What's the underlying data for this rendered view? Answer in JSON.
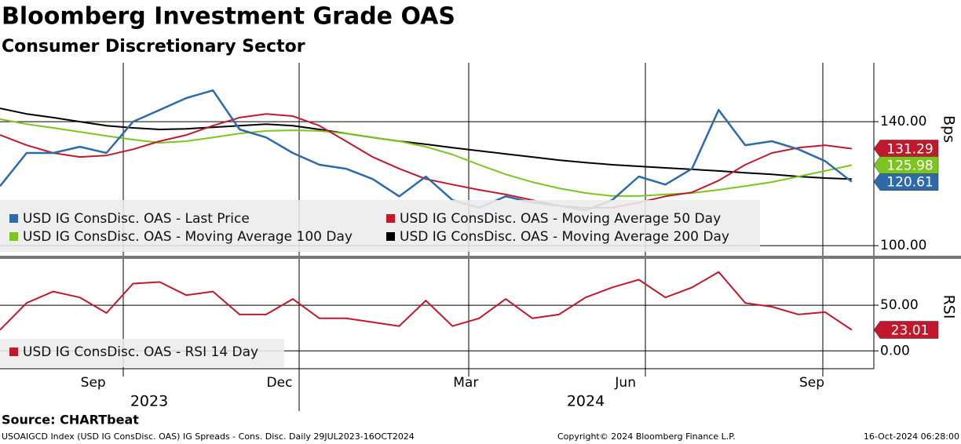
{
  "chart_data": {
    "type": "line",
    "title": "Bloomberg Investment Grade OAS",
    "subtitle": "Consumer Discretionary Sector",
    "categories": [
      null,
      null,
      null,
      "Sep",
      null,
      null,
      null,
      null,
      null,
      null,
      "Dec",
      null,
      null,
      null,
      null,
      null,
      null,
      "Mar",
      null,
      null,
      null,
      null,
      null,
      "Jun",
      null,
      null,
      null,
      null,
      null,
      null,
      "Sep",
      null,
      null
    ],
    "x_groups": [
      "2023",
      "2024"
    ],
    "panels": [
      {
        "ylabel": "Bps",
        "ylim": [
          97,
          159
        ],
        "yticks": [
          {
            "value": 100,
            "label": "100.00"
          },
          {
            "value": 140,
            "label": "140.00"
          }
        ],
        "series": [
          {
            "name": "USD IG ConsDisc. OAS - Last Price",
            "color": "#2f6aa8",
            "end_label": true,
            "values": [
              119.2,
              129.9,
              129.9,
              131.9,
              129.9,
              140,
              143.8,
              147.6,
              150.1,
              137.5,
              134.9,
              129.9,
              126.1,
              124.8,
              121.5,
              115.9,
              122.3,
              114.7,
              112.2,
              115.9,
              113.9,
              112.9,
              111.4,
              114.7,
              122.3,
              119.7,
              124.8,
              143.8,
              132.4,
              133.7,
              131.1,
              127.3,
              120.61
            ]
          },
          {
            "name": "USD IG ConsDisc. OAS - Moving Average 50 Day",
            "color": "#c0192e",
            "end_label": true,
            "values": [
              135.7,
              132.4,
              129.9,
              128.6,
              129.1,
              131.1,
              133.7,
              135.7,
              138.7,
              141.3,
              142.5,
              141.8,
              138.7,
              133.7,
              128.6,
              124.8,
              121.5,
              119.7,
              118,
              116.5,
              114.7,
              112.9,
              112.2,
              112.2,
              113.9,
              115.9,
              117.2,
              121,
              126.1,
              129.9,
              131.6,
              132.4,
              131.29
            ]
          },
          {
            "name": "USD IG ConsDisc. OAS - Moving Average 100 Day",
            "color": "#7cc520",
            "end_label": true,
            "values": [
              140.8,
              139.2,
              138,
              136.7,
              135.4,
              134.2,
              133.2,
              133.7,
              134.9,
              136.2,
              137,
              137.2,
              137,
              136.2,
              134.9,
              133.7,
              131.9,
              129.4,
              126.1,
              123,
              120.5,
              118.5,
              117,
              116,
              116,
              116.5,
              117,
              118,
              119.2,
              120.5,
              122.3,
              124.1,
              125.98
            ]
          },
          {
            "name": "USD IG ConsDisc. OAS - Moving Average 200 Day",
            "color": "#000000",
            "end_label": false,
            "values": [
              144.3,
              142.5,
              141.3,
              140,
              138.7,
              138,
              137.5,
              137.7,
              138.2,
              138.7,
              139.2,
              138.7,
              137.5,
              136.2,
              134.9,
              133.7,
              132.7,
              131.6,
              130.6,
              129.6,
              128.6,
              127.6,
              126.8,
              126.1,
              125.6,
              125.1,
              124.6,
              124.1,
              123.5,
              123,
              122.3,
              121.8,
              121.5
            ]
          }
        ]
      },
      {
        "ylabel": "RSI",
        "ylim": [
          -19.5,
          99
        ],
        "yticks": [
          {
            "value": 0,
            "label": "0.00"
          },
          {
            "value": 50,
            "label": "50.00"
          }
        ],
        "series": [
          {
            "name": "USD IG ConsDisc. OAS - RSI 14 Day",
            "color": "#c0192e",
            "end_label": true,
            "values": [
              23,
              52.5,
              65,
              58.5,
              41.5,
              73.7,
              75.4,
              61,
              65,
              39.8,
              39.8,
              56.8,
              35.6,
              35.6,
              31.4,
              27.1,
              55.1,
              27.1,
              35.6,
              56.8,
              35.6,
              39.8,
              58.5,
              69.5,
              78,
              58.5,
              69.5,
              86.4,
              52.5,
              48.3,
              39.8,
              42.4,
              23.01
            ]
          }
        ]
      }
    ]
  },
  "footer": {
    "source": "Source: CHARTbeat",
    "description": "USOAIGCD Index (USD IG ConsDisc. OAS) IG Spreads - Cons. Disc.  Daily 29JUL2023-16OCT2024",
    "copyright": "Copyright© 2024 Bloomberg Finance L.P.",
    "timestamp": "16-Oct-2024 06:28:00"
  }
}
